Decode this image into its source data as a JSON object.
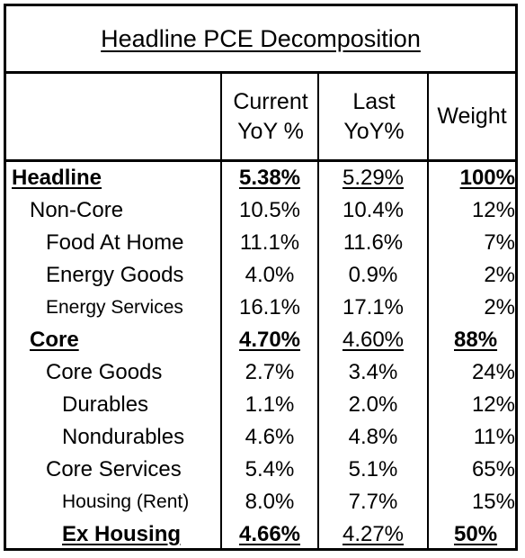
{
  "title": "Headline PCE Decomposition",
  "headers": {
    "col1_line1": "Current",
    "col1_line2": "YoY %",
    "col2_line1": "Last",
    "col2_line2": "YoY%",
    "col3": "Weight"
  },
  "rows": [
    {
      "label": "Headline",
      "current": "5.38%",
      "last": "5.29%",
      "weight": "100%"
    },
    {
      "label": "Non-Core",
      "current": "10.5%",
      "last": "10.4%",
      "weight": "12%"
    },
    {
      "label": "Food At Home",
      "current": "11.1%",
      "last": "11.6%",
      "weight": "7%"
    },
    {
      "label": "Energy Goods",
      "current": "4.0%",
      "last": "0.9%",
      "weight": "2%"
    },
    {
      "label": "Energy Services",
      "current": "16.1%",
      "last": "17.1%",
      "weight": "2%"
    },
    {
      "label": "Core",
      "current": "4.70%",
      "last": "4.60%",
      "weight": "88%"
    },
    {
      "label": "Core Goods",
      "current": "2.7%",
      "last": "3.4%",
      "weight": "24%"
    },
    {
      "label": "Durables",
      "current": "1.1%",
      "last": "2.0%",
      "weight": "12%"
    },
    {
      "label": "Nondurables",
      "current": "4.6%",
      "last": "4.8%",
      "weight": "11%"
    },
    {
      "label": "Core Services",
      "current": "5.4%",
      "last": "5.1%",
      "weight": "65%"
    },
    {
      "label": "Housing (Rent)",
      "current": "8.0%",
      "last": "7.7%",
      "weight": "15%"
    },
    {
      "label": "Ex Housing",
      "current": "4.66%",
      "last": "4.27%",
      "weight": "50%"
    }
  ]
}
